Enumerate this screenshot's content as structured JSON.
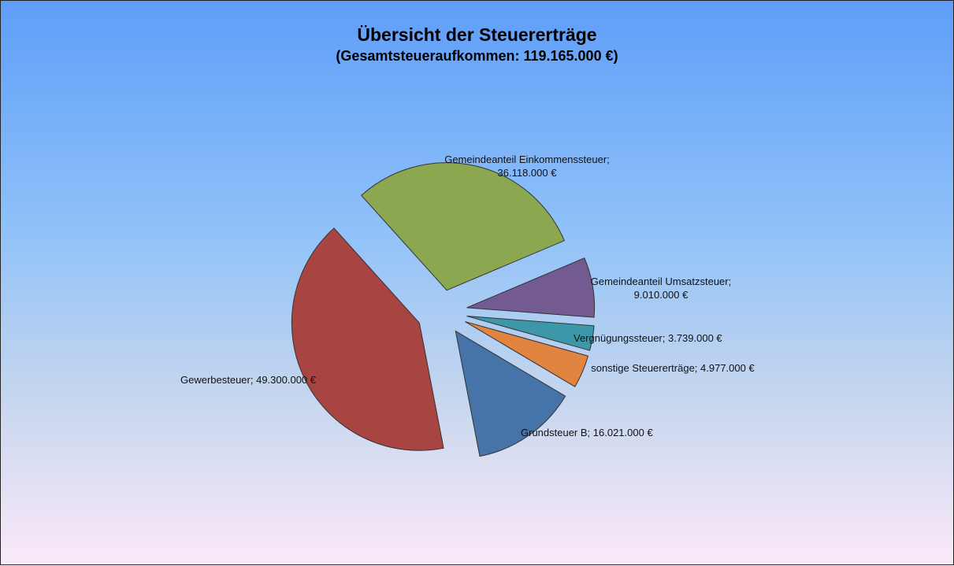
{
  "chart_data": {
    "type": "pie",
    "title": "Übersicht der Steuererträge",
    "subtitle": "(Gesamtsteueraufkommen:  119.165.000  €)",
    "values": [
      36118000,
      9010000,
      3739000,
      4977000,
      16021000,
      49300000
    ],
    "value_labels": [
      "Gemeindeanteil Einkommenssteuer;  36.118.000 €",
      "Gemeindeanteil  Umsatzsteuer;  9.010.000 €",
      "Vergnügungssteuer;  3.739.000 €",
      "sonstige  Steuererträge;  4.977.000 €",
      "Grundsteuer  B;  16.021.000 €",
      "Gewerbesteuer;  49.300.000 €"
    ],
    "colors": [
      "#8ba74f",
      "#735a91",
      "#3c98a8",
      "#e0843f",
      "#4674a8",
      "#a84442"
    ]
  }
}
